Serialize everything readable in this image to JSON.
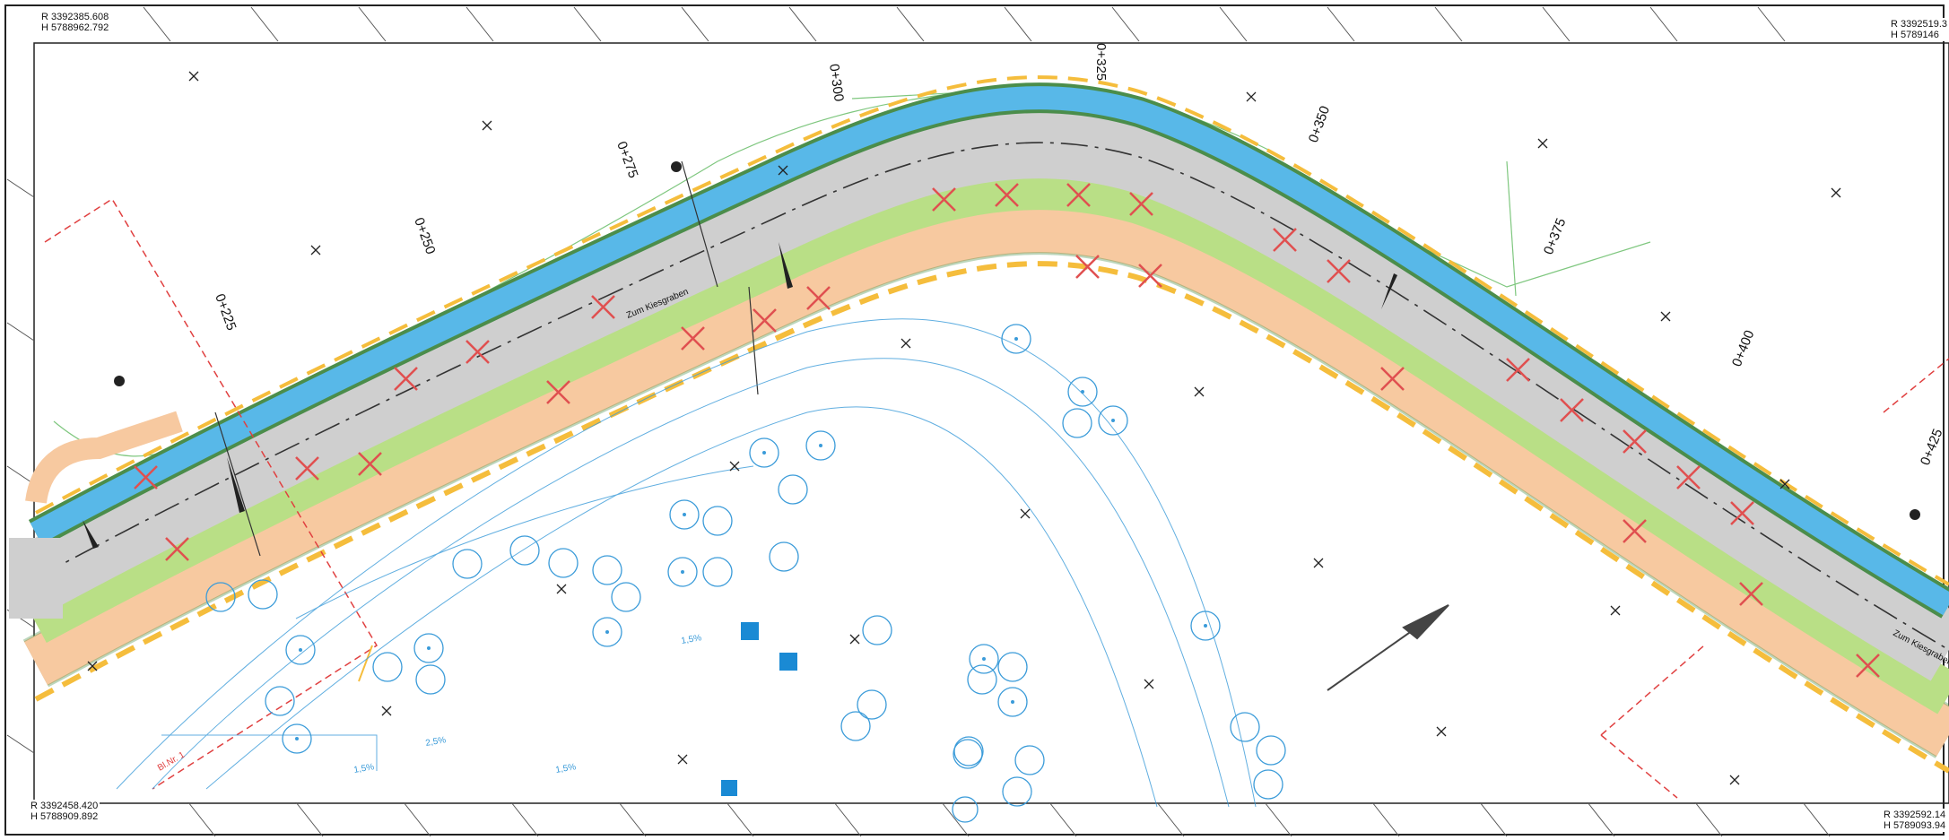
{
  "corners": {
    "top_left": {
      "r": "R 3392385.608",
      "h": "H 5788962.792"
    },
    "top_right": {
      "r": "R 3392519.3",
      "h": "H 5789146"
    },
    "bottom_left": {
      "r": "R 3392458.420",
      "h": "H 5788909.892"
    },
    "bottom_right": {
      "r": "R 3392592.14",
      "h": "H 5789093.94"
    }
  },
  "stations": [
    "0+225",
    "0+250",
    "0+275",
    "0+300",
    "0+325",
    "0+350",
    "0+375",
    "0+400",
    "0+425"
  ],
  "road_label": "Zum Kiesgraben",
  "road_label_right": "Zum Kiesgraben",
  "boundary_label": "Bl.Nr. 1",
  "slope_labels": [
    "1,5%",
    "2,5%",
    "1,5%",
    "1,5%"
  ],
  "colors": {
    "road": "#cfcfcf",
    "bike_lane": "#58b8e8",
    "green_strip": "#b9df86",
    "footway": "#f7c9a0",
    "dash_yellow": "#f5bd3c",
    "trees": "#3a9bd9",
    "removal_cross": "#e05050",
    "boundary": "#e04040",
    "survey_green": "#7fc77f"
  }
}
